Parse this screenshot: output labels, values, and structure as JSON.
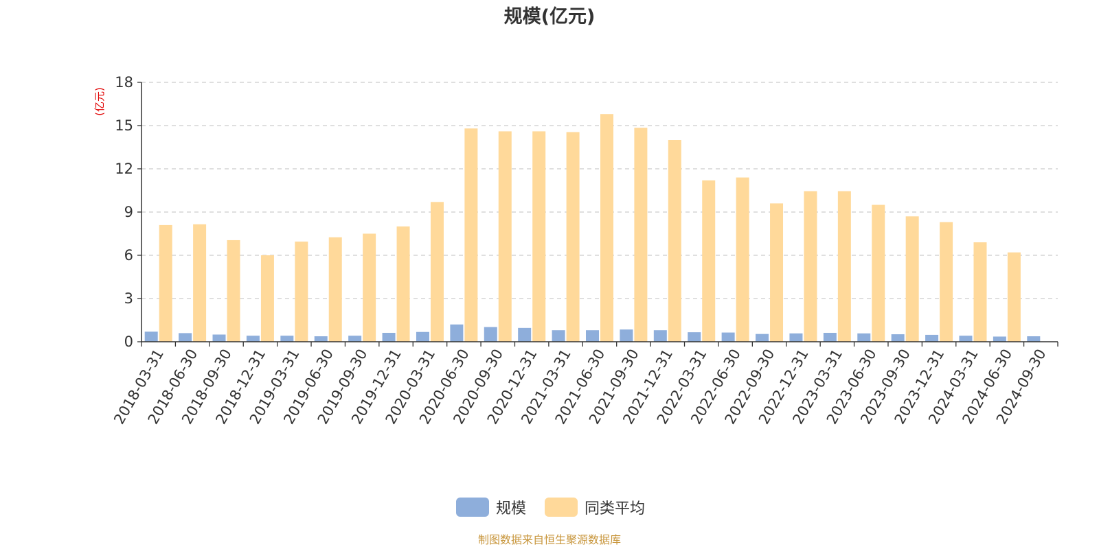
{
  "chart_data": {
    "type": "bar",
    "title": "规模(亿元)",
    "ylabel": "(亿元)",
    "ylim": [
      0,
      18
    ],
    "yticks": [
      0,
      3,
      6,
      9,
      12,
      15,
      18
    ],
    "grid": true,
    "legend_position": "bottom",
    "categories": [
      "2018-03-31",
      "2018-06-30",
      "2018-09-30",
      "2018-12-31",
      "2019-03-31",
      "2019-06-30",
      "2019-09-30",
      "2019-12-31",
      "2020-03-31",
      "2020-06-30",
      "2020-09-30",
      "2020-12-31",
      "2021-03-31",
      "2021-06-30",
      "2021-09-30",
      "2021-12-31",
      "2022-03-31",
      "2022-06-30",
      "2022-09-30",
      "2022-12-31",
      "2023-03-31",
      "2023-06-30",
      "2023-09-30",
      "2023-12-31",
      "2024-03-31",
      "2024-06-30",
      "2024-09-30"
    ],
    "series": [
      {
        "name": "规模",
        "color": "#8eaedb",
        "values": [
          0.7,
          0.6,
          0.5,
          0.42,
          0.42,
          0.38,
          0.42,
          0.62,
          0.68,
          1.2,
          1.02,
          0.96,
          0.8,
          0.8,
          0.85,
          0.8,
          0.66,
          0.64,
          0.54,
          0.58,
          0.62,
          0.58,
          0.52,
          0.48,
          0.42,
          0.36,
          0.38
        ]
      },
      {
        "name": "同类平均",
        "color": "#ffd99a",
        "values": [
          8.1,
          8.15,
          7.05,
          6.0,
          6.95,
          7.25,
          7.5,
          8.0,
          9.7,
          14.8,
          14.6,
          14.6,
          14.55,
          15.8,
          14.85,
          14.0,
          11.2,
          11.4,
          9.6,
          10.45,
          10.45,
          9.5,
          8.7,
          8.3,
          6.9,
          6.2,
          null
        ]
      }
    ]
  },
  "footer": {
    "source": "制图数据来自恒生聚源数据库"
  }
}
